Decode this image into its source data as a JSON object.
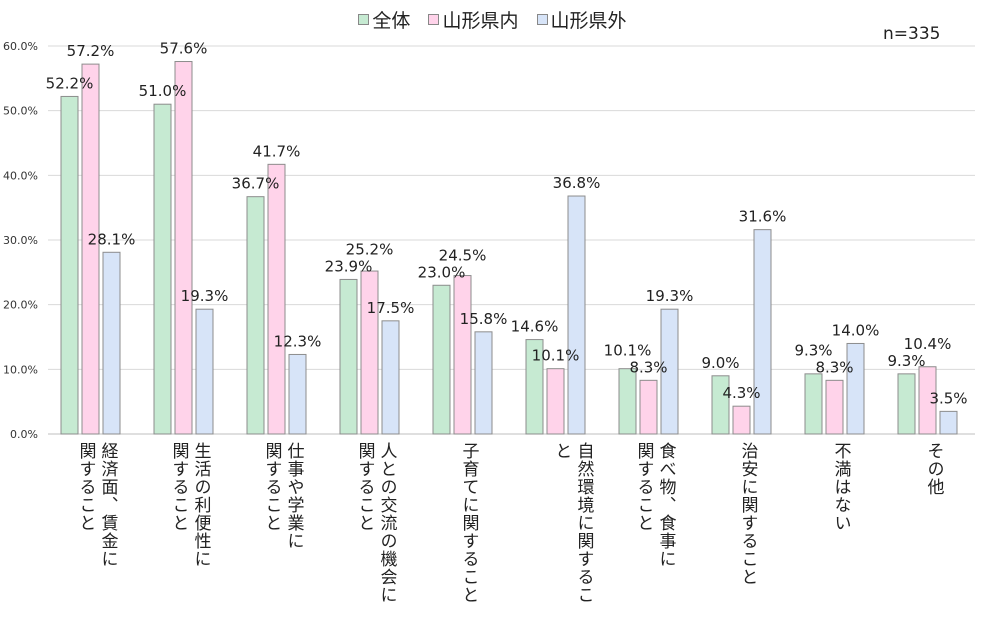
{
  "chart_data": {
    "type": "bar",
    "note_label": "n=335",
    "categories": [
      [
        "経済面、賃金に",
        "関すること"
      ],
      [
        "生活の利便性に",
        "関すること"
      ],
      [
        "仕事や学業に",
        "関すること"
      ],
      [
        "人との交流の機会に",
        "関すること"
      ],
      [
        "子育てに関すること"
      ],
      [
        "自然環境に関すること"
      ],
      [
        "食べ物、食事に",
        "関すること"
      ],
      [
        "治安に関すること"
      ],
      [
        "不満はない"
      ],
      [
        "その他"
      ]
    ],
    "series": [
      {
        "name": "全体",
        "color": "#c6ead2",
        "values": [
          52.2,
          51.0,
          36.7,
          23.9,
          23.0,
          14.6,
          10.1,
          9.0,
          9.3,
          9.3
        ]
      },
      {
        "name": "山形県内",
        "color": "#ffd3ea",
        "values": [
          57.2,
          57.6,
          41.7,
          25.2,
          24.5,
          10.1,
          8.3,
          4.3,
          8.3,
          10.4
        ]
      },
      {
        "name": "山形県外",
        "color": "#d7e4f8",
        "values": [
          28.1,
          19.3,
          12.3,
          17.5,
          15.8,
          36.8,
          19.3,
          31.6,
          14.0,
          3.5
        ]
      }
    ],
    "ylim": [
      0,
      60
    ],
    "yticks": [
      "0.0%",
      "10.0%",
      "20.0%",
      "30.0%",
      "40.0%",
      "50.0%",
      "60.0%"
    ],
    "grid": true,
    "legend_position": "top"
  }
}
